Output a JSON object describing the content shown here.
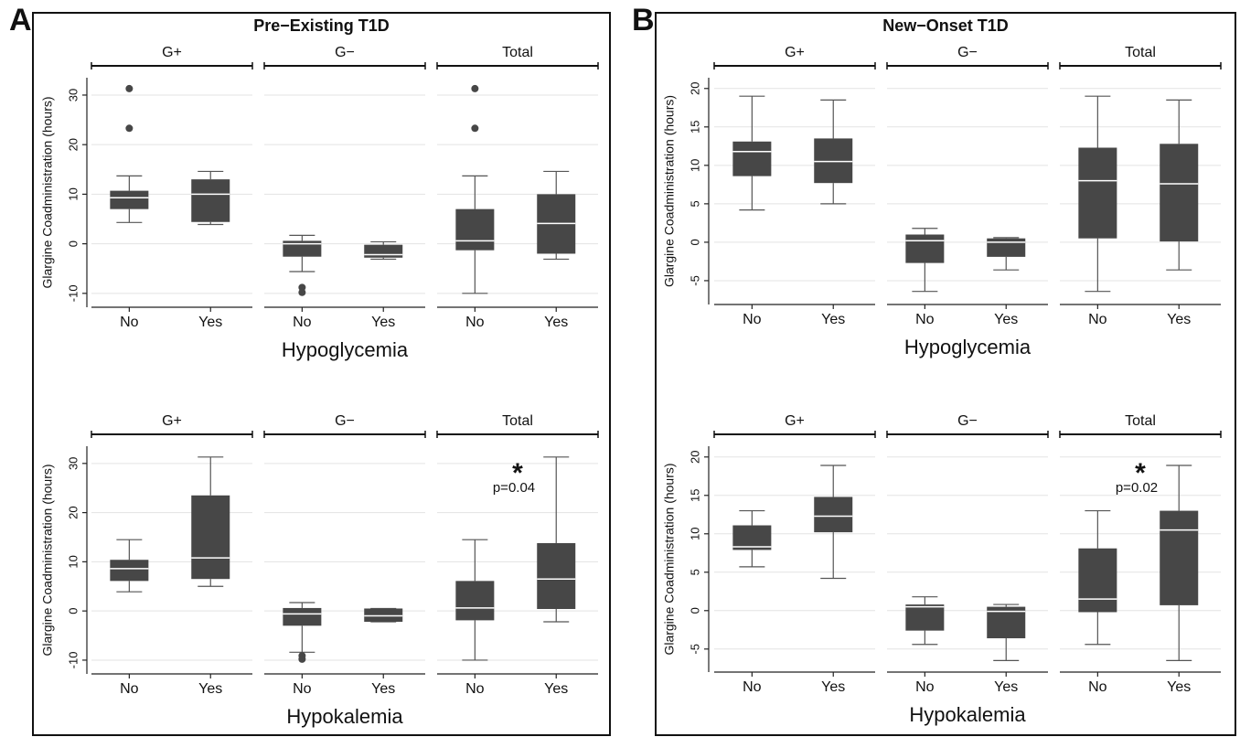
{
  "chart_data": [
    {
      "type": "box",
      "panel_label": "A",
      "title": "Pre−Existing T1D",
      "xlabel": "Hypoglycemia",
      "ylabel": "Glargine Coadministration (hours)",
      "ylim": [
        -12.8,
        33.5
      ],
      "yticks": [
        -10,
        0,
        10,
        20,
        30
      ],
      "grid": true,
      "color": "#474747",
      "groups": [
        {
          "name": "G+",
          "categories": [
            "No",
            "Yes"
          ],
          "boxes": [
            {
              "whislo": 4.3,
              "q1": 7.0,
              "med": 9.3,
              "q3": 10.7,
              "whishi": 13.7,
              "fliers": [
                31.3,
                23.3
              ]
            },
            {
              "whislo": 3.9,
              "q1": 4.4,
              "med": 10.0,
              "q3": 13.0,
              "whishi": 14.6
            }
          ]
        },
        {
          "name": "G−",
          "categories": [
            "No",
            "Yes"
          ],
          "boxes": [
            {
              "whislo": -5.6,
              "q1": -2.6,
              "med": 0,
              "q3": 0.6,
              "whishi": 1.7,
              "fliers": [
                -8.8,
                -9.8
              ]
            },
            {
              "whislo": -3.1,
              "q1": -2.8,
              "med": -2.2,
              "q3": -0.2,
              "whishi": 0.4
            }
          ]
        },
        {
          "name": "Total",
          "categories": [
            "No",
            "Yes"
          ],
          "boxes": [
            {
              "whislo": -10,
              "q1": -1.3,
              "med": 0.6,
              "q3": 7.0,
              "whishi": 13.7,
              "fliers": [
                31.3,
                23.3
              ]
            },
            {
              "whislo": -3.1,
              "q1": -2.0,
              "med": 4.1,
              "q3": 10.0,
              "whishi": 14.6
            }
          ]
        }
      ]
    },
    {
      "type": "box",
      "xlabel": "Hypokalemia",
      "ylabel": "Glargine Coadministration (hours)",
      "ylim": [
        -12.8,
        33.5
      ],
      "yticks": [
        -10,
        0,
        10,
        20,
        30
      ],
      "grid": true,
      "color": "#474747",
      "annotations": [
        "*",
        "p=0.04"
      ],
      "groups": [
        {
          "name": "G+",
          "categories": [
            "No",
            "Yes"
          ],
          "boxes": [
            {
              "whislo": 3.9,
              "q1": 6.1,
              "med": 8.6,
              "q3": 10.4,
              "whishi": 14.5
            },
            {
              "whislo": 5.0,
              "q1": 6.5,
              "med": 10.8,
              "q3": 23.5,
              "whishi": 31.3
            }
          ]
        },
        {
          "name": "G−",
          "categories": [
            "No",
            "Yes"
          ],
          "boxes": [
            {
              "whislo": -8.4,
              "q1": -3.0,
              "med": -0.6,
              "q3": 0.6,
              "whishi": 1.7,
              "fliers": [
                -9.1,
                -9.8
              ]
            },
            {
              "whislo": -2.2,
              "q1": -2.2,
              "med": -1.0,
              "q3": 0.5,
              "whishi": 0.5
            }
          ]
        },
        {
          "name": "Total",
          "categories": [
            "No",
            "Yes"
          ],
          "boxes": [
            {
              "whislo": -10,
              "q1": -1.9,
              "med": 0.6,
              "q3": 6.1,
              "whishi": 14.5
            },
            {
              "whislo": -2.2,
              "q1": 0.4,
              "med": 6.5,
              "q3": 13.8,
              "whishi": 31.3
            }
          ]
        }
      ]
    },
    {
      "type": "box",
      "panel_label": "B",
      "title": "New−Onset T1D",
      "xlabel": "Hypoglycemia",
      "ylabel": "Glargine Coadministration (hours)",
      "ylim": [
        -8.1,
        21.4
      ],
      "yticks": [
        -5,
        0,
        5,
        10,
        15,
        20
      ],
      "grid": true,
      "color": "#474747",
      "groups": [
        {
          "name": "G+",
          "categories": [
            "No",
            "Yes"
          ],
          "boxes": [
            {
              "whislo": 4.2,
              "q1": 8.6,
              "med": 11.8,
              "q3": 13.1,
              "whishi": 19.0
            },
            {
              "whislo": 5.0,
              "q1": 7.7,
              "med": 10.5,
              "q3": 13.5,
              "whishi": 18.5
            }
          ]
        },
        {
          "name": "G−",
          "categories": [
            "No",
            "Yes"
          ],
          "boxes": [
            {
              "whislo": -6.4,
              "q1": -2.7,
              "med": 0.2,
              "q3": 1.0,
              "whishi": 1.8
            },
            {
              "whislo": -3.6,
              "q1": -1.9,
              "med": 0,
              "q3": 0.5,
              "whishi": 0.6
            }
          ]
        },
        {
          "name": "Total",
          "categories": [
            "No",
            "Yes"
          ],
          "boxes": [
            {
              "whislo": -6.4,
              "q1": 0.5,
              "med": 8.0,
              "q3": 12.3,
              "whishi": 19.0
            },
            {
              "whislo": -3.6,
              "q1": 0.1,
              "med": 7.6,
              "q3": 12.8,
              "whishi": 18.5
            }
          ]
        }
      ]
    },
    {
      "type": "box",
      "xlabel": "Hypokalemia",
      "ylabel": "Glargine Coadministration (hours)",
      "ylim": [
        -8.0,
        21.4
      ],
      "yticks": [
        -5,
        0,
        5,
        10,
        15,
        20
      ],
      "grid": true,
      "color": "#474747",
      "annotations": [
        "*",
        "p=0.02"
      ],
      "groups": [
        {
          "name": "G+",
          "categories": [
            "No",
            "Yes"
          ],
          "boxes": [
            {
              "whislo": 5.7,
              "q1": 7.9,
              "med": 8.3,
              "q3": 11.1,
              "whishi": 13.0
            },
            {
              "whislo": 4.2,
              "q1": 10.2,
              "med": 12.3,
              "q3": 14.8,
              "whishi": 18.9
            }
          ]
        },
        {
          "name": "G−",
          "categories": [
            "No",
            "Yes"
          ],
          "boxes": [
            {
              "whislo": -4.4,
              "q1": -2.6,
              "med": 0.5,
              "q3": 0.8,
              "whishi": 1.8
            },
            {
              "whislo": -6.5,
              "q1": -3.6,
              "med": -0.1,
              "q3": 0.5,
              "whishi": 0.8
            }
          ]
        },
        {
          "name": "Total",
          "categories": [
            "No",
            "Yes"
          ],
          "boxes": [
            {
              "whislo": -4.4,
              "q1": -0.2,
              "med": 1.5,
              "q3": 8.1,
              "whishi": 13.0
            },
            {
              "whislo": -6.5,
              "q1": 0.7,
              "med": 10.5,
              "q3": 13.0,
              "whishi": 18.9
            }
          ]
        }
      ]
    }
  ]
}
